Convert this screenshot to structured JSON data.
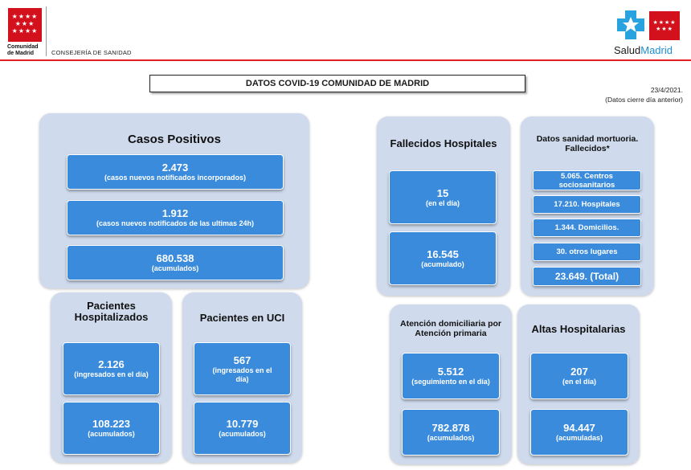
{
  "header": {
    "cm_stars": "★★★★\n★★★\n★★★★",
    "cm_name_line1": "Comunidad",
    "cm_name_line2": "de Madrid",
    "consejeria": "CONSEJERÍA DE SANIDAD",
    "salud_prefix": "Salud",
    "salud_suffix": "Madrid",
    "colors": {
      "brand_red": "#d3111d",
      "salud_blue": "#1e8fd0"
    }
  },
  "title": "DATOS COVID-19 COMUNIDAD DE MADRID",
  "date": {
    "line1": "23/4/2021.",
    "line2": "(Datos cierre día anterior)"
  },
  "casos": {
    "title": "Casos Positivos",
    "items": [
      {
        "value": "2.473",
        "sub": "(casos nuevos notificados incorporados)"
      },
      {
        "value": "1.912",
        "sub": "(casos nuevos notificados de las ultimas 24h)"
      },
      {
        "value": "680.538",
        "sub": "(acumulados)"
      }
    ]
  },
  "hospitalizados": {
    "title": "Pacientes Hospitalizados",
    "items": [
      {
        "value": "2.126",
        "sub": "(ingresados en el día)"
      },
      {
        "value": "108.223",
        "sub": "(acumulados)"
      }
    ]
  },
  "uci": {
    "title": "Pacientes en UCI",
    "items": [
      {
        "value": "567",
        "sub": "(ingresados en el día)"
      },
      {
        "value": "10.779",
        "sub": "(acumulados)"
      }
    ]
  },
  "fallecidos": {
    "title": "Fallecidos Hospitales",
    "items": [
      {
        "value": "15",
        "sub": "(en el día)"
      },
      {
        "value": "16.545",
        "sub": "(acumulado)"
      }
    ]
  },
  "mortuoria": {
    "title": "Datos sanidad mortuoria. Fallecidos*",
    "items": [
      "5.065. Centros sociosanitarios",
      "17.210. Hospitales",
      "1.344. Domicilios.",
      "30. otros lugares",
      "23.649. (Total)"
    ]
  },
  "domiciliaria": {
    "title": "Atención domiciliaria por Atención primaria",
    "items": [
      {
        "value": "5.512",
        "sub": "(seguimiento en el día)"
      },
      {
        "value": "782.878",
        "sub": "(acumulados)"
      }
    ]
  },
  "altas": {
    "title": "Altas Hospitalarias",
    "items": [
      {
        "value": "207",
        "sub": "(en el día)"
      },
      {
        "value": "94.447",
        "sub": "(acumuladas)"
      }
    ]
  }
}
